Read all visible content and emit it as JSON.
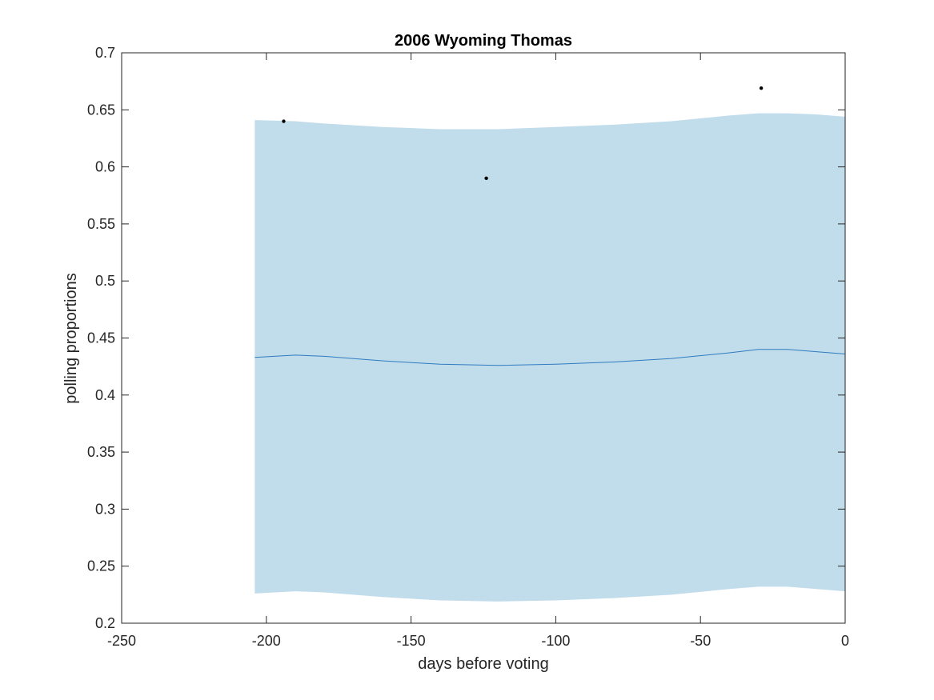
{
  "chart_data": {
    "type": "line",
    "title": "2006 Wyoming Thomas",
    "xlabel": "days before voting",
    "ylabel": "polling proportions",
    "xlim": [
      -250,
      0
    ],
    "ylim": [
      0.2,
      0.7
    ],
    "xticks": [
      -250,
      -200,
      -150,
      -100,
      -50,
      0
    ],
    "yticks": [
      0.2,
      0.25,
      0.3,
      0.35,
      0.4,
      0.45,
      0.5,
      0.55,
      0.6,
      0.65,
      0.7
    ],
    "grid": false,
    "band": {
      "x": [
        -204,
        -190,
        -180,
        -160,
        -140,
        -120,
        -100,
        -80,
        -60,
        -40,
        -30,
        -20,
        -10,
        0
      ],
      "upper": [
        0.641,
        0.64,
        0.638,
        0.635,
        0.633,
        0.633,
        0.635,
        0.637,
        0.64,
        0.645,
        0.647,
        0.647,
        0.646,
        0.644
      ],
      "lower": [
        0.226,
        0.228,
        0.227,
        0.223,
        0.22,
        0.219,
        0.22,
        0.222,
        0.225,
        0.23,
        0.232,
        0.232,
        0.23,
        0.228
      ],
      "color": "#c1dceb"
    },
    "series": [
      {
        "x": [
          -204,
          -190,
          -180,
          -160,
          -140,
          -120,
          -100,
          -80,
          -60,
          -40,
          -30,
          -20,
          -10,
          0
        ],
        "y": [
          0.433,
          0.435,
          0.434,
          0.43,
          0.427,
          0.426,
          0.427,
          0.429,
          0.432,
          0.437,
          0.44,
          0.44,
          0.438,
          0.436
        ],
        "color": "#2f7cc0"
      }
    ],
    "points": [
      {
        "x": -194,
        "y": 0.64
      },
      {
        "x": -124,
        "y": 0.59
      },
      {
        "x": -29,
        "y": 0.669
      }
    ],
    "point_color": "#000000"
  }
}
